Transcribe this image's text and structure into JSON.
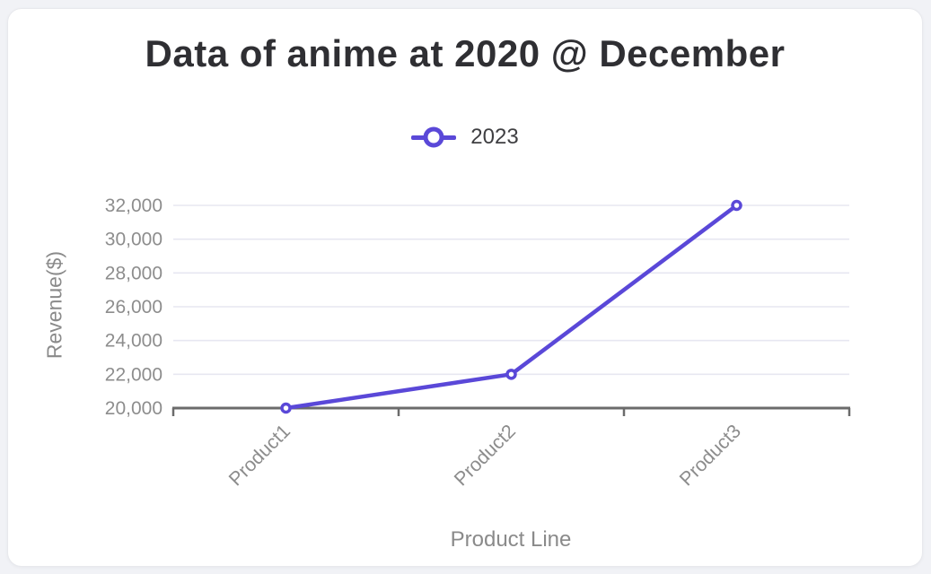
{
  "page": {
    "background": "#F1F2F6"
  },
  "card": {
    "background": "#FFFFFF",
    "border": "#E8E9ED"
  },
  "chart_data": {
    "type": "line",
    "title": "Data of anime at 2020 @ December",
    "categories": [
      "Product1",
      "Product2",
      "Product3"
    ],
    "series": [
      {
        "name": "2023",
        "values": [
          20000,
          22000,
          32000
        ]
      }
    ],
    "xlabel": "Product Line",
    "ylabel": "Revenue($)",
    "ylim": [
      20000,
      32000
    ],
    "ytick_step": 2000,
    "ytick_labels": [
      "20,000",
      "22,000",
      "24,000",
      "26,000",
      "28,000",
      "30,000",
      "32,000"
    ],
    "legend_position": "top-center",
    "grid": "horizontal-only",
    "marker_style": "hollow-circle",
    "x_label_rotation_deg": -45,
    "colors": {
      "series": "#5A48D8",
      "grid": "#E7E7F1",
      "axis": "#6B6B6B",
      "tick_label": "#8D8D8D",
      "axis_title": "#8A8A8A",
      "title": "#2F2F33",
      "legend_text": "#3F3F42",
      "marker_fill": "#FFFFFF"
    }
  }
}
